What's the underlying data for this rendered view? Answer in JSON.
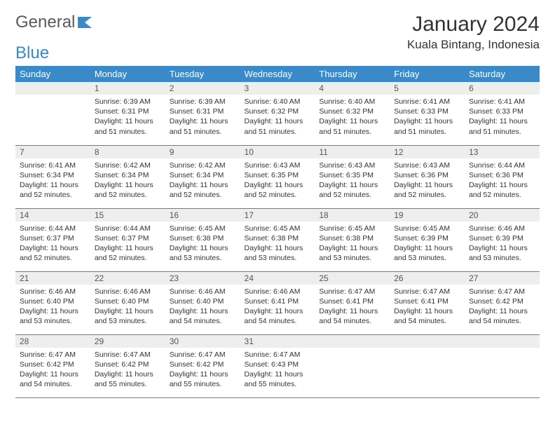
{
  "logo": {
    "text1": "General",
    "text2": "Blue"
  },
  "title": "January 2024",
  "location": "Kuala Bintang, Indonesia",
  "colors": {
    "header_bg": "#3a8ac9",
    "header_text": "#ffffff",
    "daynum_bg": "#eeeeee",
    "border": "#3a8ac9",
    "logo_gray": "#5a5a5a",
    "logo_blue": "#3a8ac9"
  },
  "columns": [
    "Sunday",
    "Monday",
    "Tuesday",
    "Wednesday",
    "Thursday",
    "Friday",
    "Saturday"
  ],
  "weeks": [
    [
      null,
      {
        "n": "1",
        "sr": "6:39 AM",
        "ss": "6:31 PM",
        "dl": "11 hours and 51 minutes."
      },
      {
        "n": "2",
        "sr": "6:39 AM",
        "ss": "6:31 PM",
        "dl": "11 hours and 51 minutes."
      },
      {
        "n": "3",
        "sr": "6:40 AM",
        "ss": "6:32 PM",
        "dl": "11 hours and 51 minutes."
      },
      {
        "n": "4",
        "sr": "6:40 AM",
        "ss": "6:32 PM",
        "dl": "11 hours and 51 minutes."
      },
      {
        "n": "5",
        "sr": "6:41 AM",
        "ss": "6:33 PM",
        "dl": "11 hours and 51 minutes."
      },
      {
        "n": "6",
        "sr": "6:41 AM",
        "ss": "6:33 PM",
        "dl": "11 hours and 51 minutes."
      }
    ],
    [
      {
        "n": "7",
        "sr": "6:41 AM",
        "ss": "6:34 PM",
        "dl": "11 hours and 52 minutes."
      },
      {
        "n": "8",
        "sr": "6:42 AM",
        "ss": "6:34 PM",
        "dl": "11 hours and 52 minutes."
      },
      {
        "n": "9",
        "sr": "6:42 AM",
        "ss": "6:34 PM",
        "dl": "11 hours and 52 minutes."
      },
      {
        "n": "10",
        "sr": "6:43 AM",
        "ss": "6:35 PM",
        "dl": "11 hours and 52 minutes."
      },
      {
        "n": "11",
        "sr": "6:43 AM",
        "ss": "6:35 PM",
        "dl": "11 hours and 52 minutes."
      },
      {
        "n": "12",
        "sr": "6:43 AM",
        "ss": "6:36 PM",
        "dl": "11 hours and 52 minutes."
      },
      {
        "n": "13",
        "sr": "6:44 AM",
        "ss": "6:36 PM",
        "dl": "11 hours and 52 minutes."
      }
    ],
    [
      {
        "n": "14",
        "sr": "6:44 AM",
        "ss": "6:37 PM",
        "dl": "11 hours and 52 minutes."
      },
      {
        "n": "15",
        "sr": "6:44 AM",
        "ss": "6:37 PM",
        "dl": "11 hours and 52 minutes."
      },
      {
        "n": "16",
        "sr": "6:45 AM",
        "ss": "6:38 PM",
        "dl": "11 hours and 53 minutes."
      },
      {
        "n": "17",
        "sr": "6:45 AM",
        "ss": "6:38 PM",
        "dl": "11 hours and 53 minutes."
      },
      {
        "n": "18",
        "sr": "6:45 AM",
        "ss": "6:38 PM",
        "dl": "11 hours and 53 minutes."
      },
      {
        "n": "19",
        "sr": "6:45 AM",
        "ss": "6:39 PM",
        "dl": "11 hours and 53 minutes."
      },
      {
        "n": "20",
        "sr": "6:46 AM",
        "ss": "6:39 PM",
        "dl": "11 hours and 53 minutes."
      }
    ],
    [
      {
        "n": "21",
        "sr": "6:46 AM",
        "ss": "6:40 PM",
        "dl": "11 hours and 53 minutes."
      },
      {
        "n": "22",
        "sr": "6:46 AM",
        "ss": "6:40 PM",
        "dl": "11 hours and 53 minutes."
      },
      {
        "n": "23",
        "sr": "6:46 AM",
        "ss": "6:40 PM",
        "dl": "11 hours and 54 minutes."
      },
      {
        "n": "24",
        "sr": "6:46 AM",
        "ss": "6:41 PM",
        "dl": "11 hours and 54 minutes."
      },
      {
        "n": "25",
        "sr": "6:47 AM",
        "ss": "6:41 PM",
        "dl": "11 hours and 54 minutes."
      },
      {
        "n": "26",
        "sr": "6:47 AM",
        "ss": "6:41 PM",
        "dl": "11 hours and 54 minutes."
      },
      {
        "n": "27",
        "sr": "6:47 AM",
        "ss": "6:42 PM",
        "dl": "11 hours and 54 minutes."
      }
    ],
    [
      {
        "n": "28",
        "sr": "6:47 AM",
        "ss": "6:42 PM",
        "dl": "11 hours and 54 minutes."
      },
      {
        "n": "29",
        "sr": "6:47 AM",
        "ss": "6:42 PM",
        "dl": "11 hours and 55 minutes."
      },
      {
        "n": "30",
        "sr": "6:47 AM",
        "ss": "6:42 PM",
        "dl": "11 hours and 55 minutes."
      },
      {
        "n": "31",
        "sr": "6:47 AM",
        "ss": "6:43 PM",
        "dl": "11 hours and 55 minutes."
      },
      null,
      null,
      null
    ]
  ],
  "labels": {
    "sunrise": "Sunrise:",
    "sunset": "Sunset:",
    "daylight": "Daylight:"
  }
}
